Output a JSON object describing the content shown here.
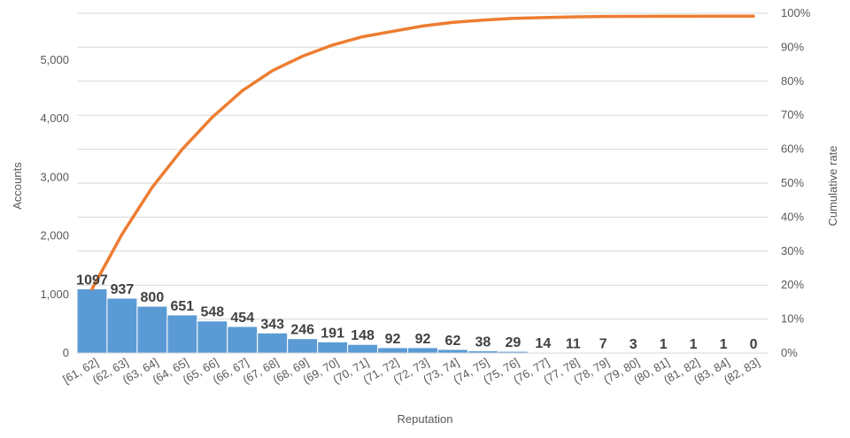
{
  "chart_data": {
    "type": "bar",
    "xlabel": "Reputation",
    "ylabel": "Accounts",
    "y2label": "Cumulative rate",
    "ylim": [
      0,
      5800
    ],
    "y2lim": [
      0,
      1.0
    ],
    "yticks": [
      "0",
      "1,000",
      "2,000",
      "3,000",
      "4,000",
      "5,000"
    ],
    "y2ticks": [
      "0%",
      "10%",
      "20%",
      "30%",
      "40%",
      "50%",
      "60%",
      "70%",
      "80%",
      "90%",
      "100%"
    ],
    "grid": true,
    "categories": [
      "[61, 62]",
      "(62, 63]",
      "(63, 64]",
      "(64, 65]",
      "(65, 66]",
      "(66, 67]",
      "(67, 68]",
      "(68, 69]",
      "(69, 70]",
      "(70, 71]",
      "(71, 72]",
      "(72, 73]",
      "(73, 74]",
      "(74, 75]",
      "(75, 76]",
      "(76, 77]",
      "(77, 78]",
      "(78, 79]",
      "(79, 80]",
      "(80, 81]",
      "(81, 82]",
      "(83, 84]",
      "(82, 83]"
    ],
    "series": [
      {
        "kind": "bar",
        "values": [
          1097,
          937,
          800,
          651,
          548,
          454,
          343,
          246,
          191,
          148,
          92,
          92,
          62,
          38,
          29,
          14,
          11,
          7,
          3,
          1,
          1,
          1,
          0
        ],
        "color": "#5b9bd5"
      },
      {
        "kind": "line",
        "axis": "secondary",
        "values": [
          0.1888,
          0.3501,
          0.4878,
          0.5998,
          0.6941,
          0.7722,
          0.8313,
          0.8736,
          0.9065,
          0.931,
          0.9468,
          0.9626,
          0.9733,
          0.9799,
          0.9849,
          0.9873,
          0.9892,
          0.9904,
          0.9909,
          0.9911,
          0.9913,
          0.9915,
          0.9915
        ],
        "color": "#ed7d31"
      }
    ]
  }
}
